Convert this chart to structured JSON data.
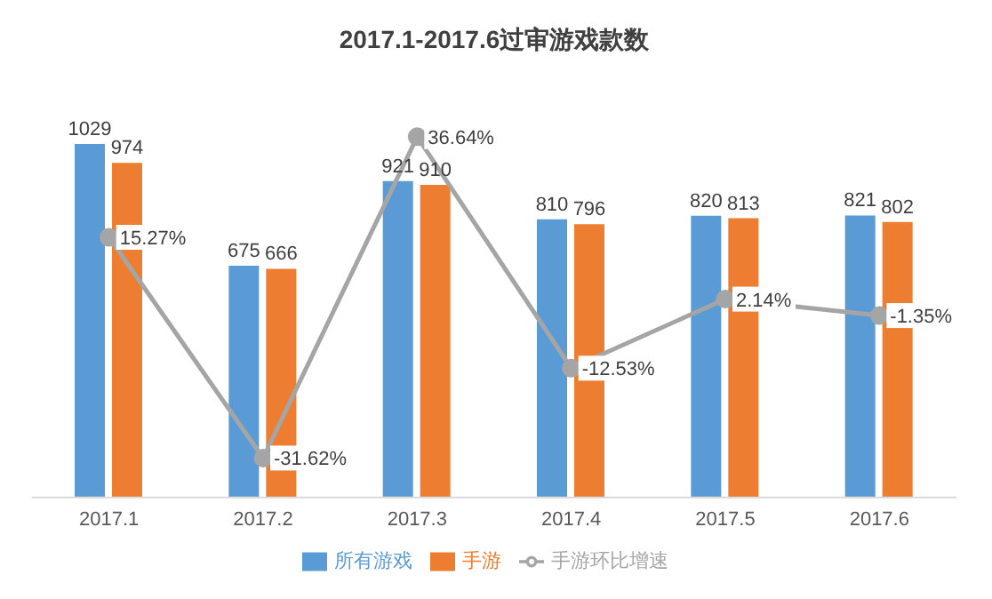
{
  "chart_data": {
    "type": "bar",
    "title": "2017.1-2017.6过审游戏款数",
    "categories": [
      "2017.1",
      "2017.2",
      "2017.3",
      "2017.4",
      "2017.5",
      "2017.6"
    ],
    "series": [
      {
        "name": "所有游戏",
        "color": "#5b9bd5",
        "values": [
          1029,
          675,
          921,
          810,
          820,
          821
        ],
        "value_labels": [
          "1029",
          "675",
          "921",
          "810",
          "820",
          "821"
        ]
      },
      {
        "name": "手游",
        "color": "#ed7d31",
        "values": [
          974,
          666,
          910,
          796,
          813,
          802
        ],
        "value_labels": [
          "974",
          "666",
          "910",
          "796",
          "813",
          "802"
        ]
      },
      {
        "name": "手游环比增速",
        "type": "line",
        "axis": "y2",
        "color": "#a5a5a5",
        "marker": "circle",
        "values": [
          15.27,
          -31.62,
          36.64,
          -12.53,
          2.14,
          -1.35
        ],
        "value_labels": [
          "15.27%",
          "-31.62%",
          "36.64%",
          "-12.53%",
          "2.14%",
          "-1.35%"
        ]
      }
    ],
    "tick_labels": "x",
    "grid": false,
    "legend": "bottom"
  }
}
